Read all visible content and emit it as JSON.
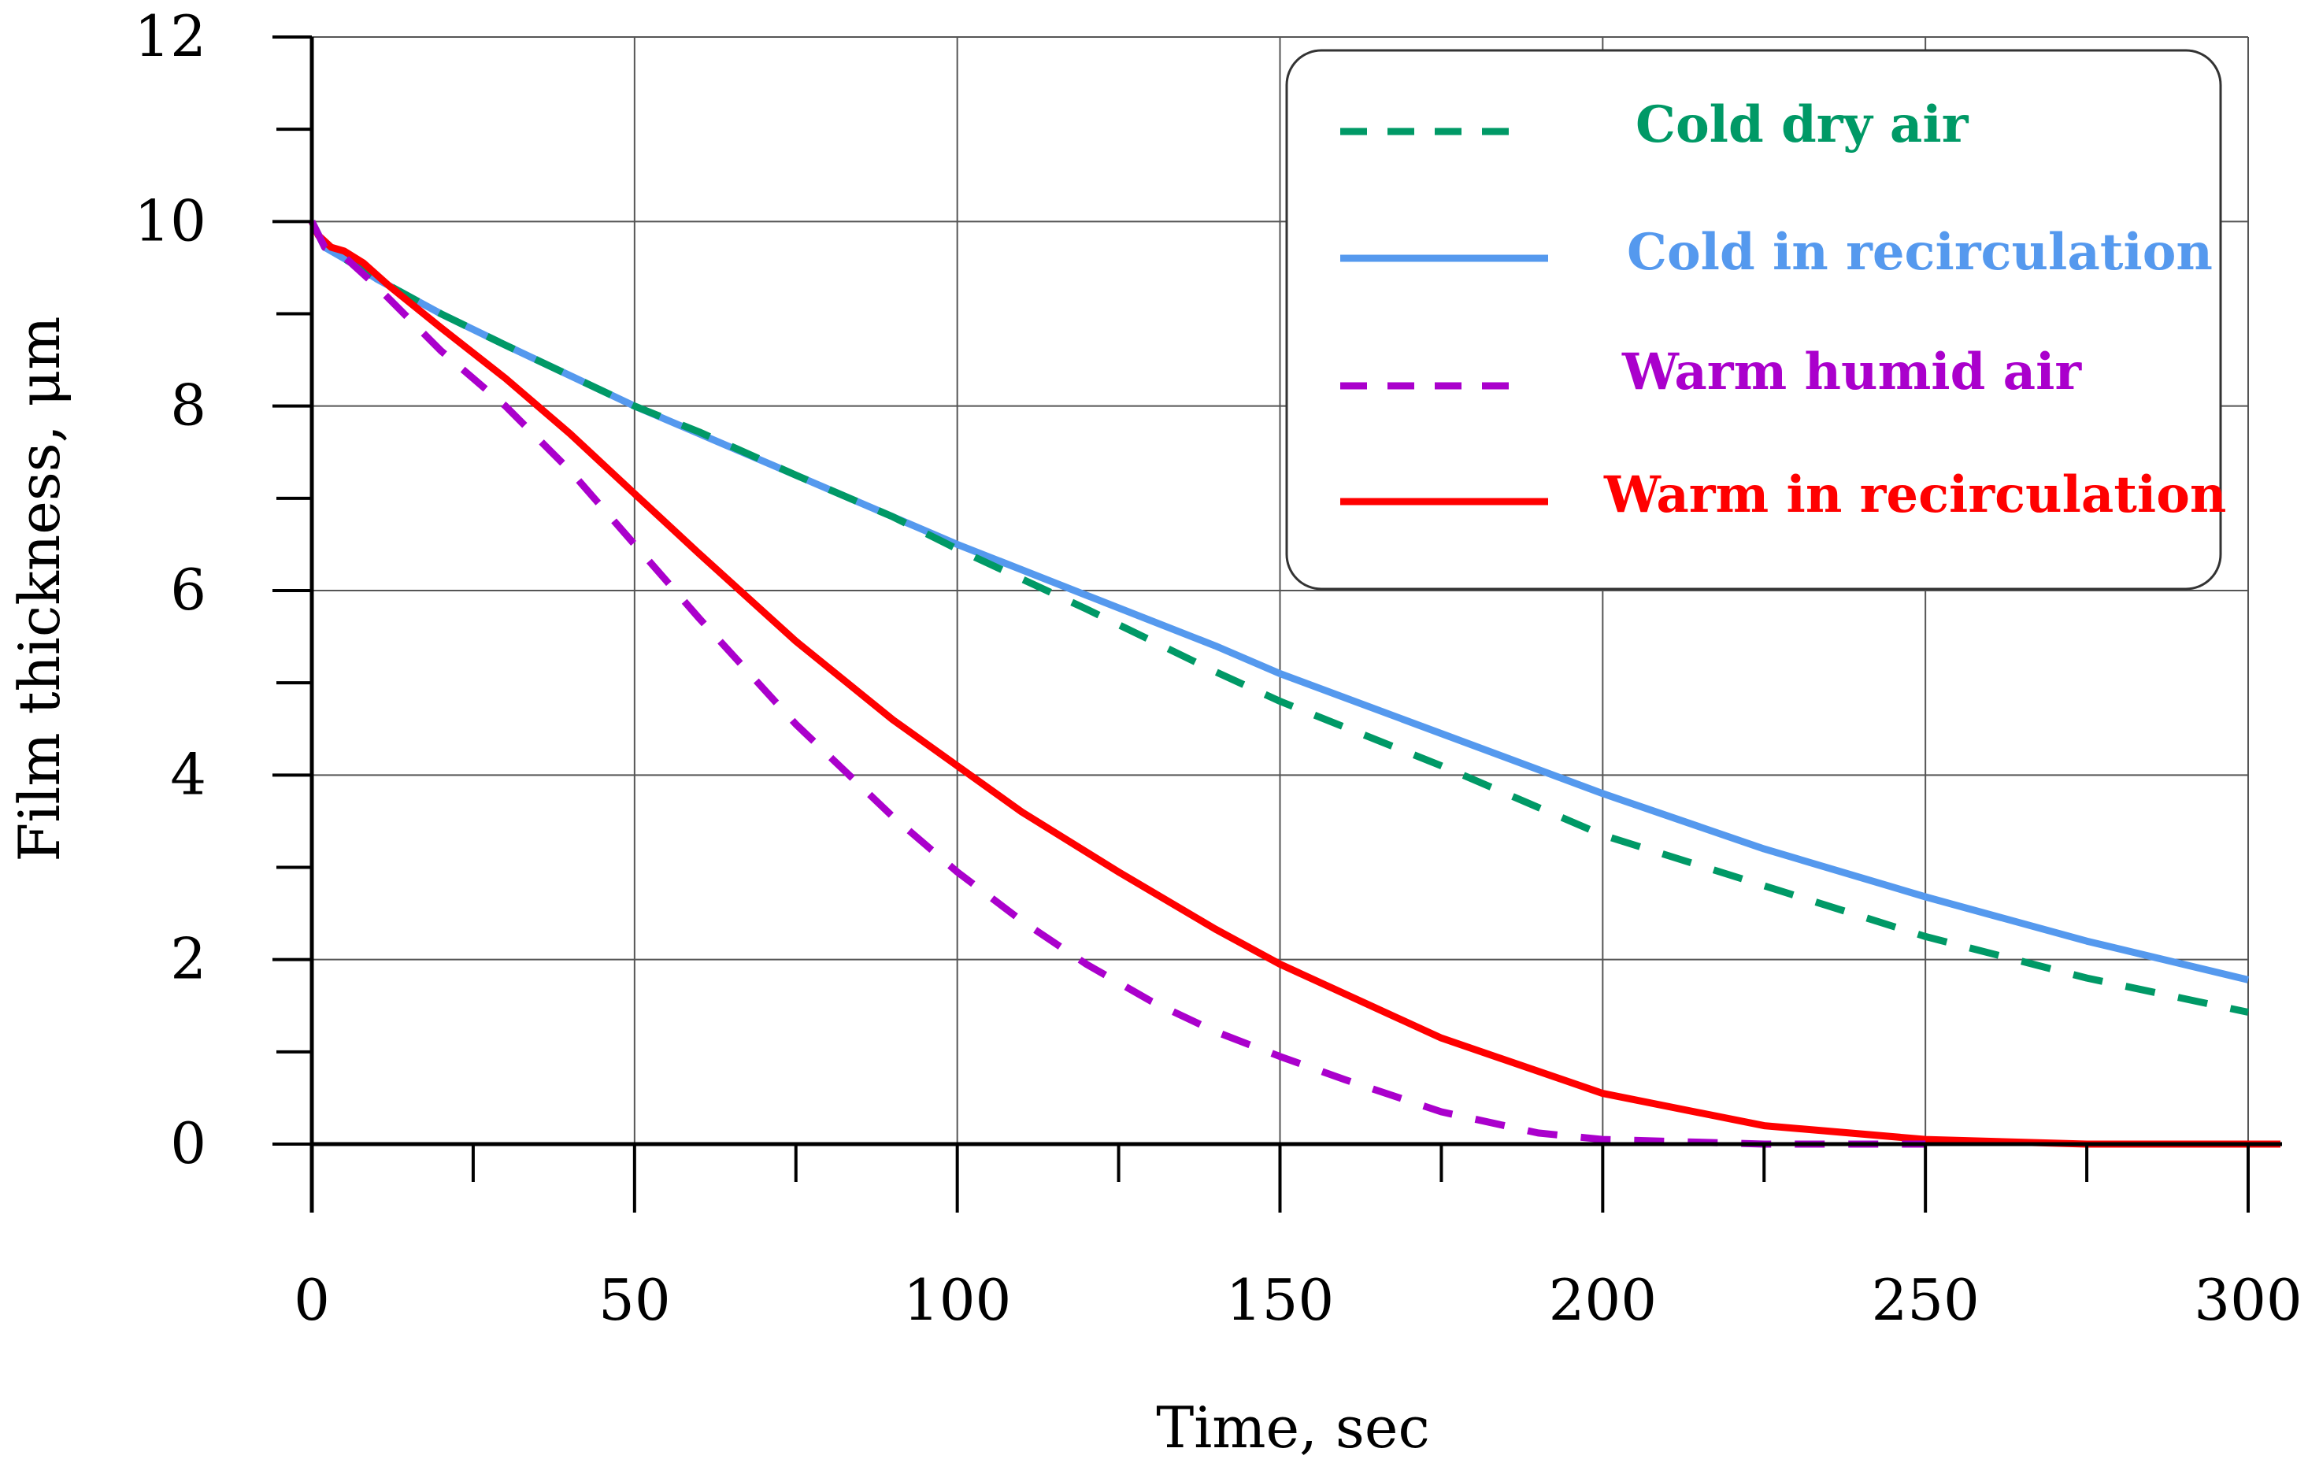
{
  "chart_data": {
    "type": "line",
    "title": "",
    "xlabel": "Time, sec",
    "ylabel": "Film thickness, μm",
    "xlim": [
      0,
      300
    ],
    "ylim": [
      0,
      12
    ],
    "x_ticks": [
      0,
      50,
      100,
      150,
      200,
      250,
      300
    ],
    "x_tick_labels": [
      "0",
      "50",
      "100",
      "150",
      "200",
      "250",
      "300"
    ],
    "x_minor_step": 25,
    "y_ticks": [
      0,
      2,
      4,
      6,
      8,
      10,
      12
    ],
    "y_tick_labels": [
      "0",
      "2",
      "4",
      "6",
      "8",
      "10",
      "12"
    ],
    "y_minor_step": 1,
    "grid": true,
    "legend_position": "top-right",
    "series": [
      {
        "name": "Cold dry air",
        "color": "#009966",
        "style": "dashed",
        "x": [
          0,
          2,
          5,
          10,
          20,
          30,
          40,
          50,
          60,
          75,
          90,
          100,
          120,
          140,
          150,
          175,
          200,
          225,
          250,
          275,
          300
        ],
        "y": [
          10.0,
          9.72,
          9.6,
          9.38,
          9.0,
          8.66,
          8.33,
          8.0,
          7.72,
          7.25,
          6.8,
          6.45,
          5.8,
          5.12,
          4.8,
          4.1,
          3.35,
          2.8,
          2.25,
          1.8,
          1.43
        ]
      },
      {
        "name": "Cold in recirculation",
        "color": "#5599ee",
        "style": "solid",
        "x": [
          0,
          2,
          5,
          10,
          20,
          30,
          40,
          50,
          60,
          75,
          90,
          100,
          120,
          140,
          150,
          175,
          200,
          225,
          250,
          275,
          300
        ],
        "y": [
          10.0,
          9.72,
          9.6,
          9.38,
          9.0,
          8.66,
          8.33,
          8.0,
          7.7,
          7.25,
          6.8,
          6.5,
          5.95,
          5.4,
          5.1,
          4.45,
          3.8,
          3.2,
          2.68,
          2.2,
          1.78
        ]
      },
      {
        "name": "Warm humid air",
        "color": "#aa00cc",
        "style": "dashed",
        "x": [
          0,
          2,
          5,
          10,
          20,
          30,
          40,
          50,
          60,
          75,
          90,
          100,
          110,
          120,
          130,
          140,
          150,
          160,
          175,
          190,
          200,
          225,
          250
        ],
        "y": [
          10.0,
          9.72,
          9.62,
          9.3,
          8.6,
          8.0,
          7.3,
          6.5,
          5.7,
          4.55,
          3.55,
          2.95,
          2.42,
          1.95,
          1.55,
          1.22,
          0.95,
          0.7,
          0.35,
          0.12,
          0.05,
          0.0,
          0.0
        ]
      },
      {
        "name": "Warm in recirculation",
        "color": "#ff0000",
        "style": "solid",
        "x": [
          0,
          1,
          3,
          5,
          8,
          12,
          20,
          30,
          40,
          50,
          60,
          75,
          90,
          100,
          110,
          125,
          140,
          150,
          175,
          200,
          225,
          250,
          275,
          300,
          305
        ],
        "y": [
          10.0,
          9.85,
          9.72,
          9.68,
          9.55,
          9.3,
          8.85,
          8.3,
          7.7,
          7.05,
          6.4,
          5.45,
          4.6,
          4.1,
          3.6,
          2.95,
          2.33,
          1.95,
          1.15,
          0.55,
          0.2,
          0.05,
          0.0,
          0.0,
          0.0
        ]
      }
    ]
  }
}
